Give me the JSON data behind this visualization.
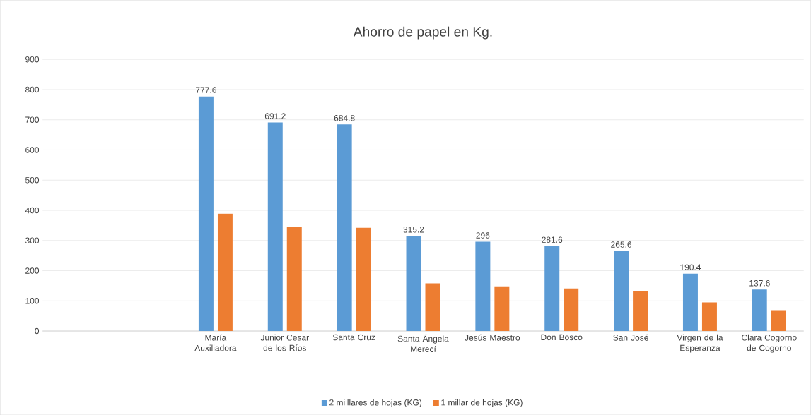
{
  "chart_data": {
    "type": "bar",
    "title": "Ahorro de papel en Kg.",
    "categories": [
      null,
      null,
      "María Auxiliadora",
      "Junior Cesar de los Ríos",
      "Santa Cruz",
      "Santa Ángela Merecí",
      "Jesús Maestro",
      "Don Bosco",
      "San José",
      "Virgen de la Esperanza",
      "Clara Cogorno de Cogorno"
    ],
    "series": [
      {
        "name": "2 milllares de hojas (KG)",
        "color": "#5b9bd5",
        "values": [
          null,
          null,
          777.6,
          691.2,
          684.8,
          315.2,
          296,
          281.6,
          265.6,
          190.4,
          137.6
        ],
        "value_labels": [
          null,
          null,
          "777.6",
          "691.2",
          "684.8",
          "315.2",
          "296",
          "281.6",
          "265.6",
          "190.4",
          "137.6"
        ]
      },
      {
        "name": "1 millar de hojas (KG)",
        "color": "#ed7d31",
        "values": [
          null,
          null,
          389,
          346,
          342,
          158,
          148,
          141,
          133,
          95,
          69
        ]
      }
    ],
    "ylim": [
      0,
      900
    ],
    "yticks": [
      0,
      100,
      200,
      300,
      400,
      500,
      600,
      700,
      800,
      900
    ],
    "grid": "y",
    "legend": "bottom"
  }
}
